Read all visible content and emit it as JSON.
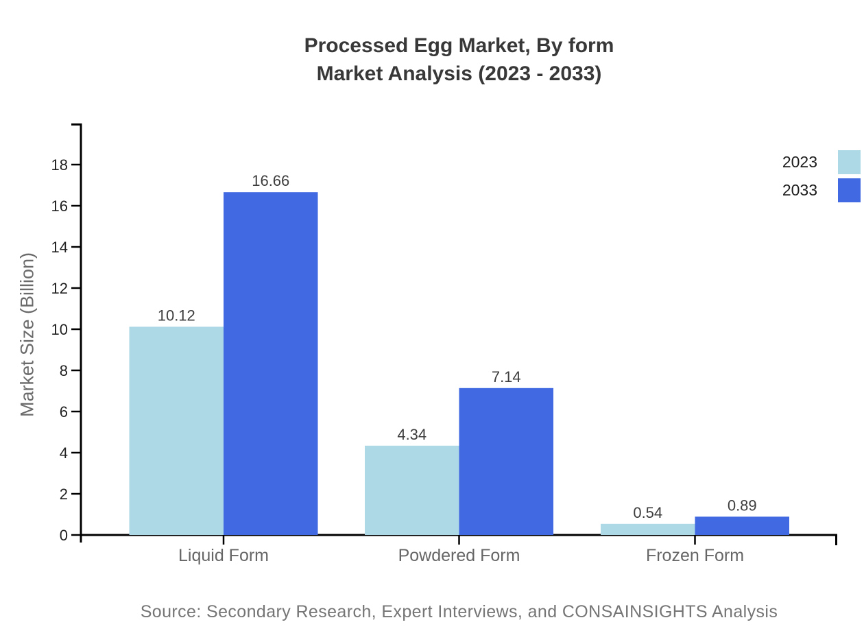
{
  "title": {
    "line1": "Processed Egg Market, By form",
    "line2": "Market Analysis (2023 - 2033)"
  },
  "source": "Source: Secondary Research, Expert Interviews, and CONSAINSIGHTS Analysis",
  "chart_data": {
    "type": "bar",
    "categories": [
      "Liquid Form",
      "Powdered Form",
      "Frozen Form"
    ],
    "series": [
      {
        "name": "2023",
        "color": "#ADD8E6",
        "values": [
          10.12,
          4.34,
          0.54
        ]
      },
      {
        "name": "2033",
        "color": "#4169E1",
        "values": [
          16.66,
          7.14,
          0.89
        ]
      }
    ],
    "ylabel": "Market Size (Billion)",
    "ylim": [
      0,
      20
    ],
    "yticks": [
      0,
      2,
      4,
      6,
      8,
      10,
      12,
      14,
      16,
      18
    ],
    "grid": false,
    "value_labels": true,
    "legend_position": "top-right"
  },
  "colors": {
    "axis_line": "#000000",
    "tick_label": "#212121",
    "category_label": "#666666",
    "value_label": "#3d3d3d",
    "title_text": "#383838",
    "axis_title_text": "#6b6b6b",
    "source_text": "#757575",
    "background": "#ffffff"
  }
}
